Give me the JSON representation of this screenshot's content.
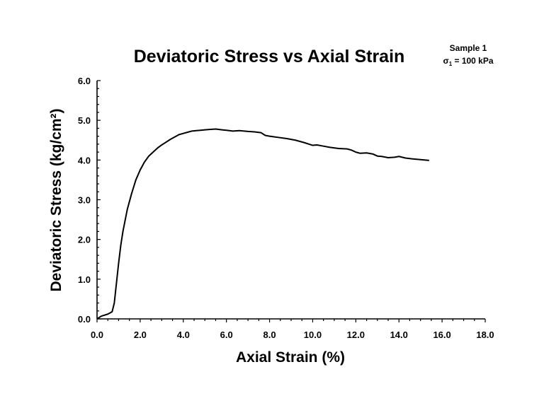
{
  "chart_data": {
    "type": "line",
    "title": "Deviatoric Stress vs Axial Strain",
    "xlabel": "Axial Strain (%)",
    "ylabel": "Deviatoric Stress (kg/cm²)",
    "xlim": [
      0,
      18
    ],
    "ylim": [
      0,
      6
    ],
    "x_ticks": [
      "0.0",
      "2.0",
      "4.0",
      "6.0",
      "8.0",
      "10.0",
      "12.0",
      "14.0",
      "16.0",
      "18.0"
    ],
    "y_ticks": [
      "0.0",
      "1.0",
      "2.0",
      "3.0",
      "4.0",
      "5.0",
      "6.0"
    ],
    "grid": false,
    "annotation": {
      "line1": "Sample 1",
      "line2_symbol": "σ",
      "line2_sub": "1",
      "line2_rest": " = 100 kPa"
    },
    "series": [
      {
        "x": [
          0.0,
          0.2,
          0.5,
          0.7,
          0.8,
          0.9,
          1.0,
          1.1,
          1.2,
          1.4,
          1.6,
          1.8,
          2.0,
          2.2,
          2.4,
          2.6,
          2.8,
          3.0,
          3.2,
          3.4,
          3.6,
          3.8,
          4.0,
          4.2,
          4.4,
          4.6,
          4.8,
          5.0,
          5.2,
          5.5,
          5.8,
          6.0,
          6.3,
          6.6,
          7.0,
          7.3,
          7.6,
          7.8,
          8.0,
          8.4,
          8.8,
          9.2,
          9.6,
          10.0,
          10.2,
          10.5,
          10.8,
          11.2,
          11.6,
          11.8,
          12.0,
          12.2,
          12.5,
          12.8,
          13.0,
          13.2,
          13.5,
          13.8,
          14.0,
          14.3,
          14.6,
          15.0,
          15.4
        ],
        "y": [
          0.0,
          0.07,
          0.12,
          0.18,
          0.4,
          0.9,
          1.4,
          1.85,
          2.2,
          2.75,
          3.15,
          3.5,
          3.75,
          3.95,
          4.1,
          4.2,
          4.3,
          4.38,
          4.45,
          4.52,
          4.58,
          4.64,
          4.67,
          4.7,
          4.73,
          4.74,
          4.75,
          4.76,
          4.77,
          4.78,
          4.76,
          4.75,
          4.73,
          4.74,
          4.72,
          4.71,
          4.69,
          4.62,
          4.6,
          4.57,
          4.54,
          4.5,
          4.44,
          4.37,
          4.38,
          4.35,
          4.32,
          4.29,
          4.28,
          4.25,
          4.2,
          4.17,
          4.18,
          4.15,
          4.1,
          4.09,
          4.06,
          4.07,
          4.09,
          4.05,
          4.03,
          4.01,
          3.99
        ]
      }
    ]
  }
}
